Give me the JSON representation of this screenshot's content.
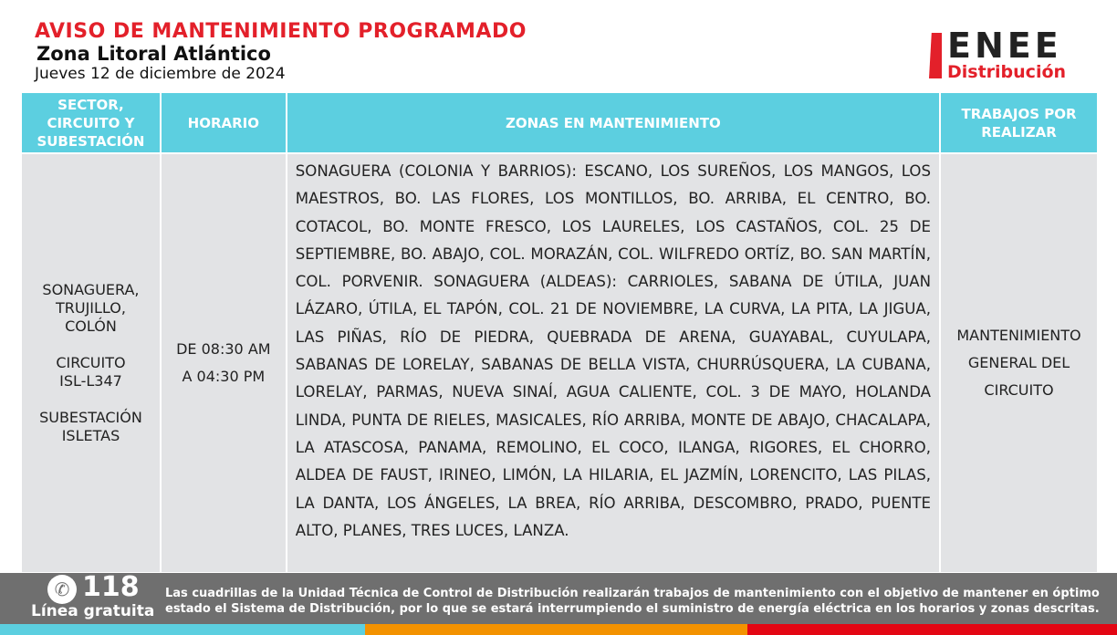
{
  "header": {
    "title": "AVISO DE MANTENIMIENTO PROGRAMADO",
    "zone": "Zona Litoral Atlántico",
    "date": "Jueves 12 de diciembre de 2024"
  },
  "logo": {
    "brand": "ENEE",
    "sub": "Distribución"
  },
  "table": {
    "headers": [
      "SECTOR, CIRCUITO Y SUBESTACIÓN",
      "HORARIO",
      "ZONAS EN MANTENIMIENTO",
      "TRABAJOS POR REALIZAR"
    ],
    "row": {
      "sector": "SONAGUERA, TRUJILLO, COLÓN",
      "circuit_label": "CIRCUITO",
      "circuit": "ISL-L347",
      "substation_label": "SUBESTACIÓN",
      "substation": "ISLETAS",
      "time_start": "DE 08:30 AM",
      "time_end": "A 04:30 PM",
      "zones": "SONAGUERA (COLONIA Y BARRIOS): ESCANO, LOS SUREÑOS, LOS MANGOS, LOS MAESTROS, BO. LAS FLORES, LOS MONTILLOS, BO. ARRIBA, EL CENTRO, BO. COTACOL, BO. MONTE FRESCO, LOS LAURELES, LOS CASTAÑOS, COL. 25 DE SEPTIEMBRE, BO. ABAJO, COL. MORAZÁN, COL. WILFREDO ORTÍZ, BO. SAN MARTÍN, COL. PORVENIR. SONAGUERA (ALDEAS): CARRIOLES, SABANA DE ÚTILA, JUAN LÁZARO, ÚTILA, EL TAPÓN, COL. 21 DE NOVIEMBRE, LA CURVA, LA PITA, LA JIGUA, LAS PIÑAS, RÍO DE PIEDRA, QUEBRADA DE ARENA, GUAYABAL, CUYULAPA, SABANAS DE LORELAY, SABANAS DE BELLA VISTA, CHURRÚSQUERA, LA CUBANA, LORELAY, PARMAS, NUEVA SINAÍ, AGUA CALIENTE, COL. 3 DE MAYO, HOLANDA LINDA, PUNTA DE RIELES, MASICALES, RÍO ARRIBA, MONTE DE ABAJO, CHACALAPA, LA ATASCOSA, PANAMA, REMOLINO, EL COCO, ILANGA, RIGORES, EL CHORRO, ALDEA DE FAUST, IRINEO, LIMÓN, LA HILARIA, EL JAZMÍN, LORENCITO, LAS PILAS, LA DANTA, LOS ÁNGELES, LA BREA, RÍO ARRIBA, DESCOMBRO, PRADO, PUENTE ALTO, PLANES, TRES LUCES, LANZA.",
      "work": "MANTENIMIENTO GENERAL DEL CIRCUITO"
    }
  },
  "footer": {
    "phone": "118",
    "phone_label": "Línea gratuita",
    "text": "Las cuadrillas de la Unidad Técnica de Control de Distribución realizarán trabajos de mantenimiento con el objetivo de mantener en óptimo estado el Sistema de Distribución, por lo que se estará interrumpiendo el suministro de energía eléctrica en los horarios y zonas descritas."
  },
  "colors": {
    "accent": "#e3202a",
    "header_bg": "#5ccfe0",
    "cell_bg": "#e2e3e5",
    "footer_bg": "#6f6f6f",
    "stripe": [
      "#5ccfe0",
      "#f39200",
      "#e30613"
    ]
  }
}
